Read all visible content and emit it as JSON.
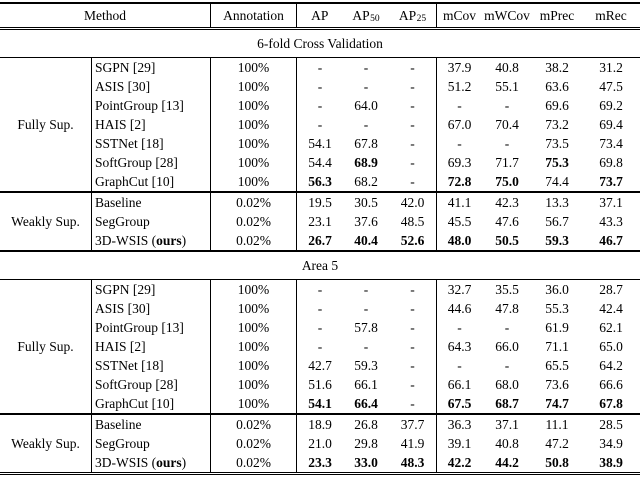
{
  "table": {
    "header": {
      "method": "Method",
      "annotation": "Annotation",
      "metrics": [
        {
          "label": "AP",
          "sub": ""
        },
        {
          "label": "AP",
          "sub": "50"
        },
        {
          "label": "AP",
          "sub": "25"
        },
        {
          "label": "mCov",
          "sub": ""
        },
        {
          "label": "mWCov",
          "sub": ""
        },
        {
          "label": "mPrec",
          "sub": ""
        },
        {
          "label": "mRec",
          "sub": ""
        }
      ]
    },
    "sections": [
      {
        "title": "6-fold Cross Validation",
        "groups": [
          {
            "label": "Fully Sup.",
            "rows": [
              {
                "method": [
                  {
                    "t": "SGPN [29]"
                  }
                ],
                "annotation": "100%",
                "values": [
                  "-",
                  "-",
                  "-",
                  "37.9",
                  "40.8",
                  "38.2",
                  "31.2"
                ],
                "bold": []
              },
              {
                "method": [
                  {
                    "t": "ASIS [30]"
                  }
                ],
                "annotation": "100%",
                "values": [
                  "-",
                  "-",
                  "-",
                  "51.2",
                  "55.1",
                  "63.6",
                  "47.5"
                ],
                "bold": []
              },
              {
                "method": [
                  {
                    "t": "PointGroup [13]"
                  }
                ],
                "annotation": "100%",
                "values": [
                  "-",
                  "64.0",
                  "-",
                  "-",
                  "-",
                  "69.6",
                  "69.2"
                ],
                "bold": []
              },
              {
                "method": [
                  {
                    "t": "HAIS [2]"
                  }
                ],
                "annotation": "100%",
                "values": [
                  "-",
                  "-",
                  "-",
                  "67.0",
                  "70.4",
                  "73.2",
                  "69.4"
                ],
                "bold": []
              },
              {
                "method": [
                  {
                    "t": "SSTNet [18]"
                  }
                ],
                "annotation": "100%",
                "values": [
                  "54.1",
                  "67.8",
                  "-",
                  "-",
                  "-",
                  "73.5",
                  "73.4"
                ],
                "bold": []
              },
              {
                "method": [
                  {
                    "t": "SoftGroup [28]"
                  }
                ],
                "annotation": "100%",
                "values": [
                  "54.4",
                  "68.9",
                  "-",
                  "69.3",
                  "71.7",
                  "75.3",
                  "69.8"
                ],
                "bold": [
                  1,
                  5
                ]
              },
              {
                "method": [
                  {
                    "t": "GraphCut [10]"
                  }
                ],
                "annotation": "100%",
                "values": [
                  "56.3",
                  "68.2",
                  "-",
                  "72.8",
                  "75.0",
                  "74.4",
                  "73.7"
                ],
                "bold": [
                  0,
                  3,
                  4,
                  6
                ]
              }
            ]
          },
          {
            "label": "Weakly Sup.",
            "rows": [
              {
                "method": [
                  {
                    "t": "Baseline"
                  }
                ],
                "annotation": "0.02%",
                "values": [
                  "19.5",
                  "30.5",
                  "42.0",
                  "41.1",
                  "42.3",
                  "13.3",
                  "37.1"
                ],
                "bold": []
              },
              {
                "method": [
                  {
                    "t": "SegGroup"
                  }
                ],
                "annotation": "0.02%",
                "values": [
                  "23.1",
                  "37.6",
                  "48.5",
                  "45.5",
                  "47.6",
                  "56.7",
                  "43.3"
                ],
                "bold": []
              },
              {
                "method": [
                  {
                    "t": "3D-WSIS ("
                  },
                  {
                    "t": "ours",
                    "b": true
                  },
                  {
                    "t": ")"
                  }
                ],
                "annotation": "0.02%",
                "values": [
                  "26.7",
                  "40.4",
                  "52.6",
                  "48.0",
                  "50.5",
                  "59.3",
                  "46.7"
                ],
                "bold": [
                  0,
                  1,
                  2,
                  3,
                  4,
                  5,
                  6
                ]
              }
            ]
          }
        ]
      },
      {
        "title": "Area 5",
        "groups": [
          {
            "label": "Fully Sup.",
            "rows": [
              {
                "method": [
                  {
                    "t": "SGPN [29]"
                  }
                ],
                "annotation": "100%",
                "values": [
                  "-",
                  "-",
                  "-",
                  "32.7",
                  "35.5",
                  "36.0",
                  "28.7"
                ],
                "bold": []
              },
              {
                "method": [
                  {
                    "t": "ASIS [30]"
                  }
                ],
                "annotation": "100%",
                "values": [
                  "-",
                  "-",
                  "-",
                  "44.6",
                  "47.8",
                  "55.3",
                  "42.4"
                ],
                "bold": []
              },
              {
                "method": [
                  {
                    "t": "PointGroup [13]"
                  }
                ],
                "annotation": "100%",
                "values": [
                  "-",
                  "57.8",
                  "-",
                  "-",
                  "-",
                  "61.9",
                  "62.1"
                ],
                "bold": []
              },
              {
                "method": [
                  {
                    "t": "HAIS [2]"
                  }
                ],
                "annotation": "100%",
                "values": [
                  "-",
                  "-",
                  "-",
                  "64.3",
                  "66.0",
                  "71.1",
                  "65.0"
                ],
                "bold": []
              },
              {
                "method": [
                  {
                    "t": "SSTNet [18]"
                  }
                ],
                "annotation": "100%",
                "values": [
                  "42.7",
                  "59.3",
                  "-",
                  "-",
                  "-",
                  "65.5",
                  "64.2"
                ],
                "bold": []
              },
              {
                "method": [
                  {
                    "t": "SoftGroup [28]"
                  }
                ],
                "annotation": "100%",
                "values": [
                  "51.6",
                  "66.1",
                  "-",
                  "66.1",
                  "68.0",
                  "73.6",
                  "66.6"
                ],
                "bold": []
              },
              {
                "method": [
                  {
                    "t": "GraphCut [10]"
                  }
                ],
                "annotation": "100%",
                "values": [
                  "54.1",
                  "66.4",
                  "-",
                  "67.5",
                  "68.7",
                  "74.7",
                  "67.8"
                ],
                "bold": [
                  0,
                  1,
                  3,
                  4,
                  5,
                  6
                ]
              }
            ]
          },
          {
            "label": "Weakly Sup.",
            "rows": [
              {
                "method": [
                  {
                    "t": "Baseline"
                  }
                ],
                "annotation": "0.02%",
                "values": [
                  "18.9",
                  "26.8",
                  "37.7",
                  "36.3",
                  "37.1",
                  "11.1",
                  "28.5"
                ],
                "bold": []
              },
              {
                "method": [
                  {
                    "t": "SegGroup"
                  }
                ],
                "annotation": "0.02%",
                "values": [
                  "21.0",
                  "29.8",
                  "41.9",
                  "39.1",
                  "40.8",
                  "47.2",
                  "34.9"
                ],
                "bold": []
              },
              {
                "method": [
                  {
                    "t": "3D-WSIS ("
                  },
                  {
                    "t": "ours",
                    "b": true
                  },
                  {
                    "t": ")"
                  }
                ],
                "annotation": "0.02%",
                "values": [
                  "23.3",
                  "33.0",
                  "48.3",
                  "42.2",
                  "44.2",
                  "50.8",
                  "38.9"
                ],
                "bold": [
                  0,
                  1,
                  2,
                  3,
                  4,
                  5,
                  6
                ]
              }
            ]
          }
        ]
      }
    ]
  }
}
